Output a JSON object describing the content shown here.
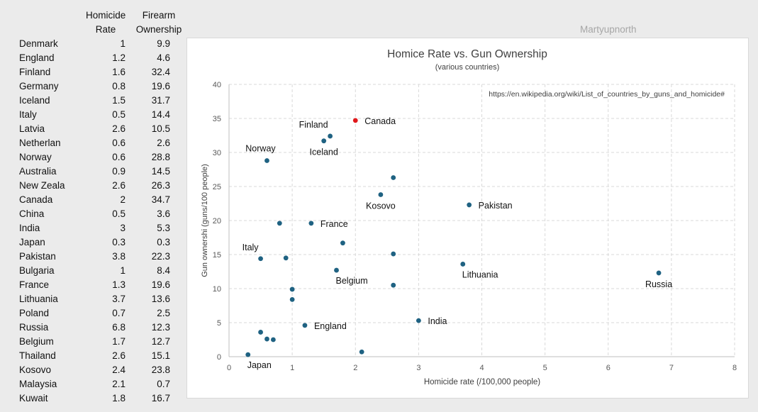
{
  "table": {
    "header": {
      "name": "",
      "rate_line1": "Homicide",
      "rate_line2": "Rate",
      "gun_line1": "Firearm",
      "gun_line2": "Ownership"
    },
    "rows": [
      {
        "name": "Denmark",
        "rate": "1",
        "gun": "9.9"
      },
      {
        "name": "England",
        "rate": "1.2",
        "gun": "4.6"
      },
      {
        "name": "Finland",
        "rate": "1.6",
        "gun": "32.4"
      },
      {
        "name": "Germany",
        "rate": "0.8",
        "gun": "19.6"
      },
      {
        "name": "Iceland",
        "rate": "1.5",
        "gun": "31.7"
      },
      {
        "name": "Italy",
        "rate": "0.5",
        "gun": "14.4"
      },
      {
        "name": "Latvia",
        "rate": "2.6",
        "gun": "10.5"
      },
      {
        "name": "Netherlan",
        "rate": "0.6",
        "gun": "2.6"
      },
      {
        "name": "Norway",
        "rate": "0.6",
        "gun": "28.8"
      },
      {
        "name": "Australia",
        "rate": "0.9",
        "gun": "14.5"
      },
      {
        "name": "New Zeala",
        "rate": "2.6",
        "gun": "26.3"
      },
      {
        "name": "Canada",
        "rate": "2",
        "gun": "34.7"
      },
      {
        "name": "China",
        "rate": "0.5",
        "gun": "3.6"
      },
      {
        "name": "India",
        "rate": "3",
        "gun": "5.3"
      },
      {
        "name": "Japan",
        "rate": "0.3",
        "gun": "0.3"
      },
      {
        "name": "Pakistan",
        "rate": "3.8",
        "gun": "22.3"
      },
      {
        "name": "Bulgaria",
        "rate": "1",
        "gun": "8.4"
      },
      {
        "name": "France",
        "rate": "1.3",
        "gun": "19.6"
      },
      {
        "name": "Lithuania",
        "rate": "3.7",
        "gun": "13.6"
      },
      {
        "name": "Poland",
        "rate": "0.7",
        "gun": "2.5"
      },
      {
        "name": "Russia",
        "rate": "6.8",
        "gun": "12.3"
      },
      {
        "name": "Belgium",
        "rate": "1.7",
        "gun": "12.7"
      },
      {
        "name": "Thailand",
        "rate": "2.6",
        "gun": "15.1"
      },
      {
        "name": "Kosovo",
        "rate": "2.4",
        "gun": "23.8"
      },
      {
        "name": "Malaysia",
        "rate": "2.1",
        "gun": "0.7"
      },
      {
        "name": "Kuwait",
        "rate": "1.8",
        "gun": "16.7"
      }
    ]
  },
  "watermark": "Martyupnorth",
  "colors": {
    "point": "#1f6282",
    "highlight": "#e0181b",
    "grid": "#d9d9d9",
    "axis_text": "#595959"
  },
  "chart_data": {
    "type": "scatter",
    "title": "Homice Rate vs. Gun Ownership",
    "subtitle": "(various countries)",
    "annotation": "https://en.wikipedia.org/wiki/List_of_countries_by_guns_and_homicide#",
    "xlabel": "Homicide rate (/100,000 people)",
    "ylabel": "Gun ownershi (guns/100 people)",
    "xlim": [
      0,
      8
    ],
    "ylim": [
      0,
      40
    ],
    "xticks": [
      0,
      1,
      2,
      3,
      4,
      5,
      6,
      7,
      8
    ],
    "yticks": [
      0,
      5,
      10,
      15,
      20,
      25,
      30,
      35,
      40
    ],
    "grid": true,
    "points": [
      {
        "country": "Denmark",
        "x": 1,
        "y": 9.9
      },
      {
        "country": "England",
        "x": 1.2,
        "y": 4.6,
        "label": "England",
        "label_pos": "right"
      },
      {
        "country": "Finland",
        "x": 1.6,
        "y": 32.4,
        "label": "Finland",
        "label_pos": "upper-left"
      },
      {
        "country": "Germany",
        "x": 0.8,
        "y": 19.6
      },
      {
        "country": "Iceland",
        "x": 1.5,
        "y": 31.7,
        "label": "Iceland",
        "label_pos": "below"
      },
      {
        "country": "Italy",
        "x": 0.5,
        "y": 14.4,
        "label": "Italy",
        "label_pos": "upper-left"
      },
      {
        "country": "Latvia",
        "x": 2.6,
        "y": 10.5
      },
      {
        "country": "Netherlan",
        "x": 0.6,
        "y": 2.6
      },
      {
        "country": "Norway",
        "x": 0.6,
        "y": 28.8,
        "label": "Norway",
        "label_pos": "above"
      },
      {
        "country": "Australia",
        "x": 0.9,
        "y": 14.5
      },
      {
        "country": "New Zeala",
        "x": 2.6,
        "y": 26.3
      },
      {
        "country": "Canada",
        "x": 2,
        "y": 34.7,
        "label": "Canada",
        "label_pos": "right",
        "highlight": true
      },
      {
        "country": "China",
        "x": 0.5,
        "y": 3.6
      },
      {
        "country": "India",
        "x": 3,
        "y": 5.3,
        "label": "India",
        "label_pos": "right"
      },
      {
        "country": "Japan",
        "x": 0.3,
        "y": 0.3,
        "label": "Japan",
        "label_pos": "below-right"
      },
      {
        "country": "Pakistan",
        "x": 3.8,
        "y": 22.3,
        "label": "Pakistan",
        "label_pos": "right"
      },
      {
        "country": "Bulgaria",
        "x": 1,
        "y": 8.4
      },
      {
        "country": "France",
        "x": 1.3,
        "y": 19.6,
        "label": "France",
        "label_pos": "right"
      },
      {
        "country": "Lithuania",
        "x": 3.7,
        "y": 13.6,
        "label": "Lithuania",
        "label_pos": "below-right"
      },
      {
        "country": "Poland",
        "x": 0.7,
        "y": 2.5
      },
      {
        "country": "Russia",
        "x": 6.8,
        "y": 12.3,
        "label": "Russia",
        "label_pos": "below"
      },
      {
        "country": "Belgium",
        "x": 1.7,
        "y": 12.7,
        "label": "Belgium",
        "label_pos": "below-right"
      },
      {
        "country": "Thailand",
        "x": 2.6,
        "y": 15.1
      },
      {
        "country": "Kosovo",
        "x": 2.4,
        "y": 23.8,
        "label": "Kosovo",
        "label_pos": "below"
      },
      {
        "country": "Malaysia",
        "x": 2.1,
        "y": 0.7
      },
      {
        "country": "Kuwait",
        "x": 1.8,
        "y": 16.7
      }
    ]
  }
}
